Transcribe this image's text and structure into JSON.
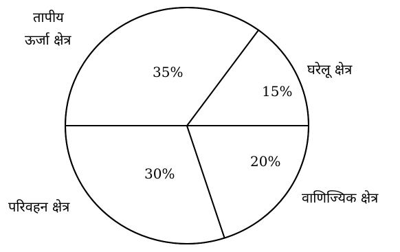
{
  "chart_data": {
    "type": "pie",
    "title": "",
    "slices": [
      {
        "label": "घरेलू क्षेत्र",
        "value": 15,
        "value_label": "15%"
      },
      {
        "label": "तापीय ऊर्जा क्षेत्र",
        "label_lines": [
          "तापीय",
          "ऊर्जा क्षेत्र"
        ],
        "value": 35,
        "value_label": "35%"
      },
      {
        "label": "परिवहन क्षेत्र",
        "value": 30,
        "value_label": "30%"
      },
      {
        "label": "वाणिज्यिक क्षेत्र",
        "value": 20,
        "value_label": "20%"
      }
    ],
    "legend": "none",
    "colors": {
      "fill": "#ffffff",
      "stroke": "#000000"
    }
  }
}
